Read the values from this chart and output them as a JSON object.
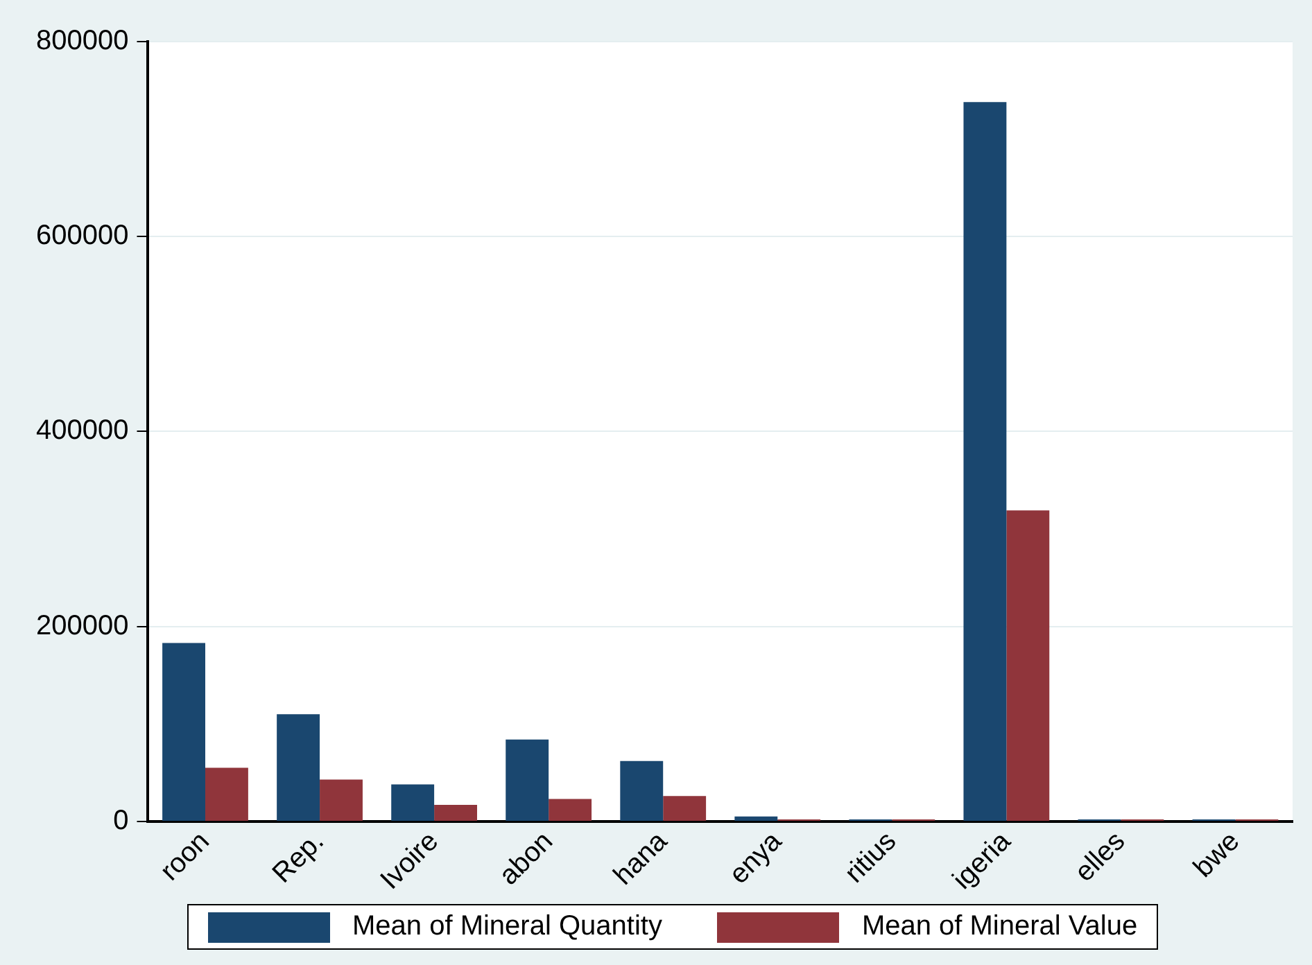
{
  "chart_data": {
    "type": "bar",
    "categories": [
      "roon",
      "Rep.",
      "Ivoire",
      "abon",
      "hana",
      "enya",
      "ritius",
      "igeria",
      "elles",
      "bwe"
    ],
    "series": [
      {
        "name": "Mean of Mineral Quantity",
        "color": "#1a476f",
        "values": [
          183000,
          110000,
          38000,
          84000,
          62000,
          5000,
          2000,
          738000,
          2000,
          2000
        ]
      },
      {
        "name": "Mean of Mineral Value",
        "color": "#90353b",
        "values": [
          55000,
          43000,
          17000,
          23000,
          26000,
          2000,
          2000,
          319000,
          2000,
          2000
        ]
      }
    ],
    "ylim": [
      0,
      800000
    ],
    "yticks": [
      0,
      200000,
      400000,
      600000,
      800000
    ],
    "grid": "y",
    "legend": "bottom"
  }
}
